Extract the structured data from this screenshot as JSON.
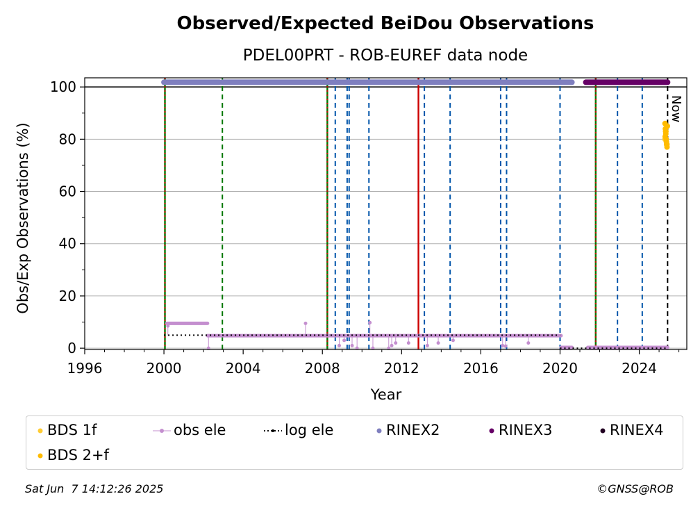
{
  "chart_data": {
    "type": "scatter",
    "title": "Observed/Expected BeiDou Observations",
    "subtitle": "PDEL00PRT - ROB-EUREF data node",
    "xlabel": "Year",
    "ylabel": "Obs/Exp Observations (%)",
    "xlim": [
      1996,
      2026.4
    ],
    "ylim": [
      -0.5,
      103.5
    ],
    "xticks": [
      1996,
      2000,
      2004,
      2008,
      2012,
      2016,
      2020,
      2024
    ],
    "yticks": [
      0,
      20,
      40,
      60,
      80,
      100
    ],
    "grid": "horizontal",
    "reference_line_y": 100,
    "now_label": "Now",
    "now_x": 2025.43,
    "vlines": [
      {
        "x": 2000.05,
        "color": "#007700",
        "style": "solid"
      },
      {
        "x": 2000.05,
        "color": "#cc0000",
        "style": "dotted"
      },
      {
        "x": 2002.95,
        "color": "#007700",
        "style": "dashed"
      },
      {
        "x": 2008.25,
        "color": "#007700",
        "style": "solid"
      },
      {
        "x": 2008.25,
        "color": "#cc0000",
        "style": "dotted"
      },
      {
        "x": 2008.65,
        "color": "#0055aa",
        "style": "dashed"
      },
      {
        "x": 2009.25,
        "color": "#0055aa",
        "style": "dashed"
      },
      {
        "x": 2009.35,
        "color": "#0055aa",
        "style": "dashed"
      },
      {
        "x": 2010.35,
        "color": "#0055aa",
        "style": "dashed"
      },
      {
        "x": 2012.85,
        "color": "#cc0000",
        "style": "solid"
      },
      {
        "x": 2013.15,
        "color": "#0055aa",
        "style": "dashed"
      },
      {
        "x": 2014.45,
        "color": "#0055aa",
        "style": "dashed"
      },
      {
        "x": 2017.0,
        "color": "#0055aa",
        "style": "dashed"
      },
      {
        "x": 2017.3,
        "color": "#0055aa",
        "style": "dashed"
      },
      {
        "x": 2020.0,
        "color": "#0055aa",
        "style": "dashed"
      },
      {
        "x": 2021.8,
        "color": "#007700",
        "style": "solid"
      },
      {
        "x": 2021.8,
        "color": "#cc0000",
        "style": "dotted"
      },
      {
        "x": 2022.9,
        "color": "#0055aa",
        "style": "dashed"
      },
      {
        "x": 2024.15,
        "color": "#0055aa",
        "style": "dashed"
      },
      {
        "x": 2025.43,
        "color": "#000000",
        "style": "dashed"
      }
    ],
    "series": [
      {
        "name": "BDS 1f",
        "color": "#ffcc33",
        "kind": "points",
        "x": [
          2025.3,
          2025.35,
          2025.4
        ],
        "y": [
          80,
          83,
          78
        ]
      },
      {
        "name": "obs ele",
        "color": "#c48fcf",
        "kind": "stems",
        "segments": [
          {
            "x": [
              2000.15,
              2002.2
            ],
            "y": 9.5
          },
          {
            "x": [
              2002.2,
              2020.05
            ],
            "y": 4.8
          },
          {
            "x": [
              2020.05,
              2020.6
            ],
            "y": 0.3
          },
          {
            "x": [
              2021.4,
              2025.43
            ],
            "y": 0.3
          }
        ],
        "outliers_x": [
          2000.2,
          2002.25,
          2007.15,
          2008.85,
          2009.1,
          2009.5,
          2009.75,
          2010.4,
          2010.55,
          2011.35,
          2011.5,
          2011.7,
          2012.35,
          2013.3,
          2013.85,
          2014.6,
          2017.1,
          2017.25,
          2018.4
        ],
        "outliers_y": [
          8.5,
          0,
          9.5,
          1,
          3,
          1,
          0,
          9.8,
          0,
          0,
          1,
          2,
          2,
          1,
          2,
          3,
          1,
          0.8,
          2
        ]
      },
      {
        "name": "log ele",
        "color": "#000000",
        "kind": "dotted-step",
        "segments": [
          {
            "x": [
              2000.0,
              2020.0
            ],
            "y": 5
          },
          {
            "x": [
              2020.0,
              2025.43
            ],
            "y": 0
          }
        ]
      },
      {
        "name": "RINEX2",
        "color": "#7f7fbf",
        "kind": "band",
        "segments": [
          {
            "x": [
              2000.0,
              2002.8
            ],
            "y": 101.8
          },
          {
            "x": [
              2002.95,
              2020.6
            ],
            "y": 101.8
          }
        ]
      },
      {
        "name": "RINEX3",
        "color": "#660066",
        "kind": "band",
        "segments": [
          {
            "x": [
              2021.3,
              2025.43
            ],
            "y": 101.8
          }
        ]
      },
      {
        "name": "RINEX4",
        "color": "#220022",
        "kind": "band",
        "segments": []
      },
      {
        "name": "BDS 2+f",
        "color": "#ffbb00",
        "kind": "points",
        "x": [
          2025.3,
          2025.32,
          2025.34,
          2025.36,
          2025.38,
          2025.4,
          2025.42,
          2025.33,
          2025.37,
          2025.31
        ],
        "y": [
          86,
          84,
          82,
          80,
          78,
          77,
          85,
          83,
          79,
          81
        ]
      }
    ]
  },
  "legend": {
    "items": [
      {
        "label": "BDS 1f",
        "color": "#ffcc33",
        "icon": "dot"
      },
      {
        "label": "obs ele",
        "color": "#c48fcf",
        "icon": "line-dot"
      },
      {
        "label": "log ele",
        "color": "#000000",
        "icon": "dotted-line"
      },
      {
        "label": "RINEX2",
        "color": "#7f7fbf",
        "icon": "dot"
      },
      {
        "label": "RINEX3",
        "color": "#660066",
        "icon": "dot"
      },
      {
        "label": "RINEX4",
        "color": "#220022",
        "icon": "dot"
      },
      {
        "label": "BDS 2+f",
        "color": "#ffbb00",
        "icon": "dot"
      }
    ]
  },
  "footer": {
    "timestamp": "Sat Jun  7 14:12:26 2025",
    "credit": "©GNSS@ROB"
  }
}
